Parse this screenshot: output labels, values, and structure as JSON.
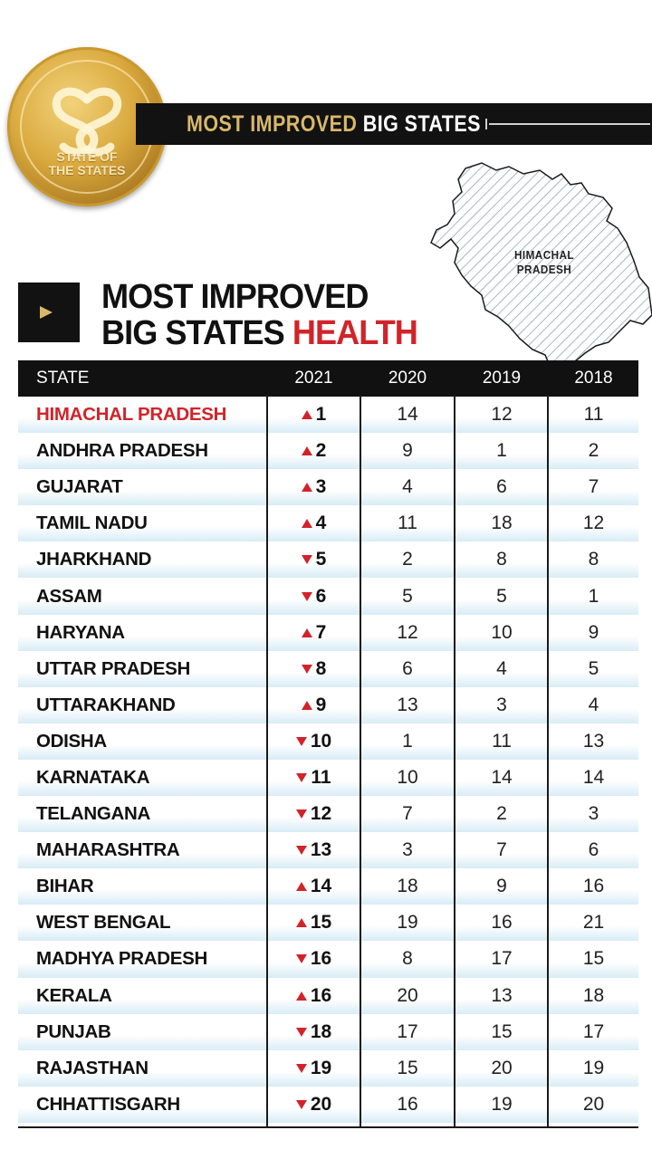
{
  "logo": {
    "text_line1": "STATE OF",
    "text_line2": "THE STATES"
  },
  "banner": {
    "text_gold": "MOST IMPROVED",
    "text_white": "BIG STATES"
  },
  "map": {
    "label_line1": "HIMACHAL",
    "label_line2": "PRADESH"
  },
  "heading": {
    "line1": "MOST IMPROVED",
    "line2_black": "BIG STATES",
    "line2_red": "HEALTH"
  },
  "colors": {
    "accent_red": "#d0242a",
    "gold": "#d8b86a",
    "dark": "#121212",
    "row_stripe": "#d8ecf6"
  },
  "table": {
    "headers": [
      "STATE",
      "2021",
      "2020",
      "2019",
      "2018"
    ],
    "rows": [
      {
        "state": "HIMACHAL PRADESH",
        "trend": "up",
        "r2021": "1",
        "r2020": "14",
        "r2019": "12",
        "r2018": "11"
      },
      {
        "state": "ANDHRA PRADESH",
        "trend": "up",
        "r2021": "2",
        "r2020": "9",
        "r2019": "1",
        "r2018": "2"
      },
      {
        "state": "GUJARAT",
        "trend": "up",
        "r2021": "3",
        "r2020": "4",
        "r2019": "6",
        "r2018": "7"
      },
      {
        "state": "TAMIL NADU",
        "trend": "up",
        "r2021": "4",
        "r2020": "11",
        "r2019": "18",
        "r2018": "12"
      },
      {
        "state": "JHARKHAND",
        "trend": "down",
        "r2021": "5",
        "r2020": "2",
        "r2019": "8",
        "r2018": "8"
      },
      {
        "state": "ASSAM",
        "trend": "down",
        "r2021": "6",
        "r2020": "5",
        "r2019": "5",
        "r2018": "1"
      },
      {
        "state": "HARYANA",
        "trend": "up",
        "r2021": "7",
        "r2020": "12",
        "r2019": "10",
        "r2018": "9"
      },
      {
        "state": "UTTAR PRADESH",
        "trend": "down",
        "r2021": "8",
        "r2020": "6",
        "r2019": "4",
        "r2018": "5"
      },
      {
        "state": "UTTARAKHAND",
        "trend": "up",
        "r2021": "9",
        "r2020": "13",
        "r2019": "3",
        "r2018": "4"
      },
      {
        "state": "ODISHA",
        "trend": "down",
        "r2021": "10",
        "r2020": "1",
        "r2019": "11",
        "r2018": "13"
      },
      {
        "state": "KARNATAKA",
        "trend": "down",
        "r2021": "11",
        "r2020": "10",
        "r2019": "14",
        "r2018": "14"
      },
      {
        "state": "TELANGANA",
        "trend": "down",
        "r2021": "12",
        "r2020": "7",
        "r2019": "2",
        "r2018": "3"
      },
      {
        "state": "MAHARASHTRA",
        "trend": "down",
        "r2021": "13",
        "r2020": "3",
        "r2019": "7",
        "r2018": "6"
      },
      {
        "state": "BIHAR",
        "trend": "up",
        "r2021": "14",
        "r2020": "18",
        "r2019": "9",
        "r2018": "16"
      },
      {
        "state": "WEST BENGAL",
        "trend": "up",
        "r2021": "15",
        "r2020": "19",
        "r2019": "16",
        "r2018": "21"
      },
      {
        "state": "MADHYA PRADESH",
        "trend": "down",
        "r2021": "16",
        "r2020": "8",
        "r2019": "17",
        "r2018": "15"
      },
      {
        "state": "KERALA",
        "trend": "up",
        "r2021": "16",
        "r2020": "20",
        "r2019": "13",
        "r2018": "18"
      },
      {
        "state": "PUNJAB",
        "trend": "down",
        "r2021": "18",
        "r2020": "17",
        "r2019": "15",
        "r2018": "17"
      },
      {
        "state": "RAJASTHAN",
        "trend": "down",
        "r2021": "19",
        "r2020": "15",
        "r2019": "20",
        "r2018": "19"
      },
      {
        "state": "CHHATTISGARH",
        "trend": "down",
        "r2021": "20",
        "r2020": "16",
        "r2019": "19",
        "r2018": "20"
      }
    ]
  }
}
